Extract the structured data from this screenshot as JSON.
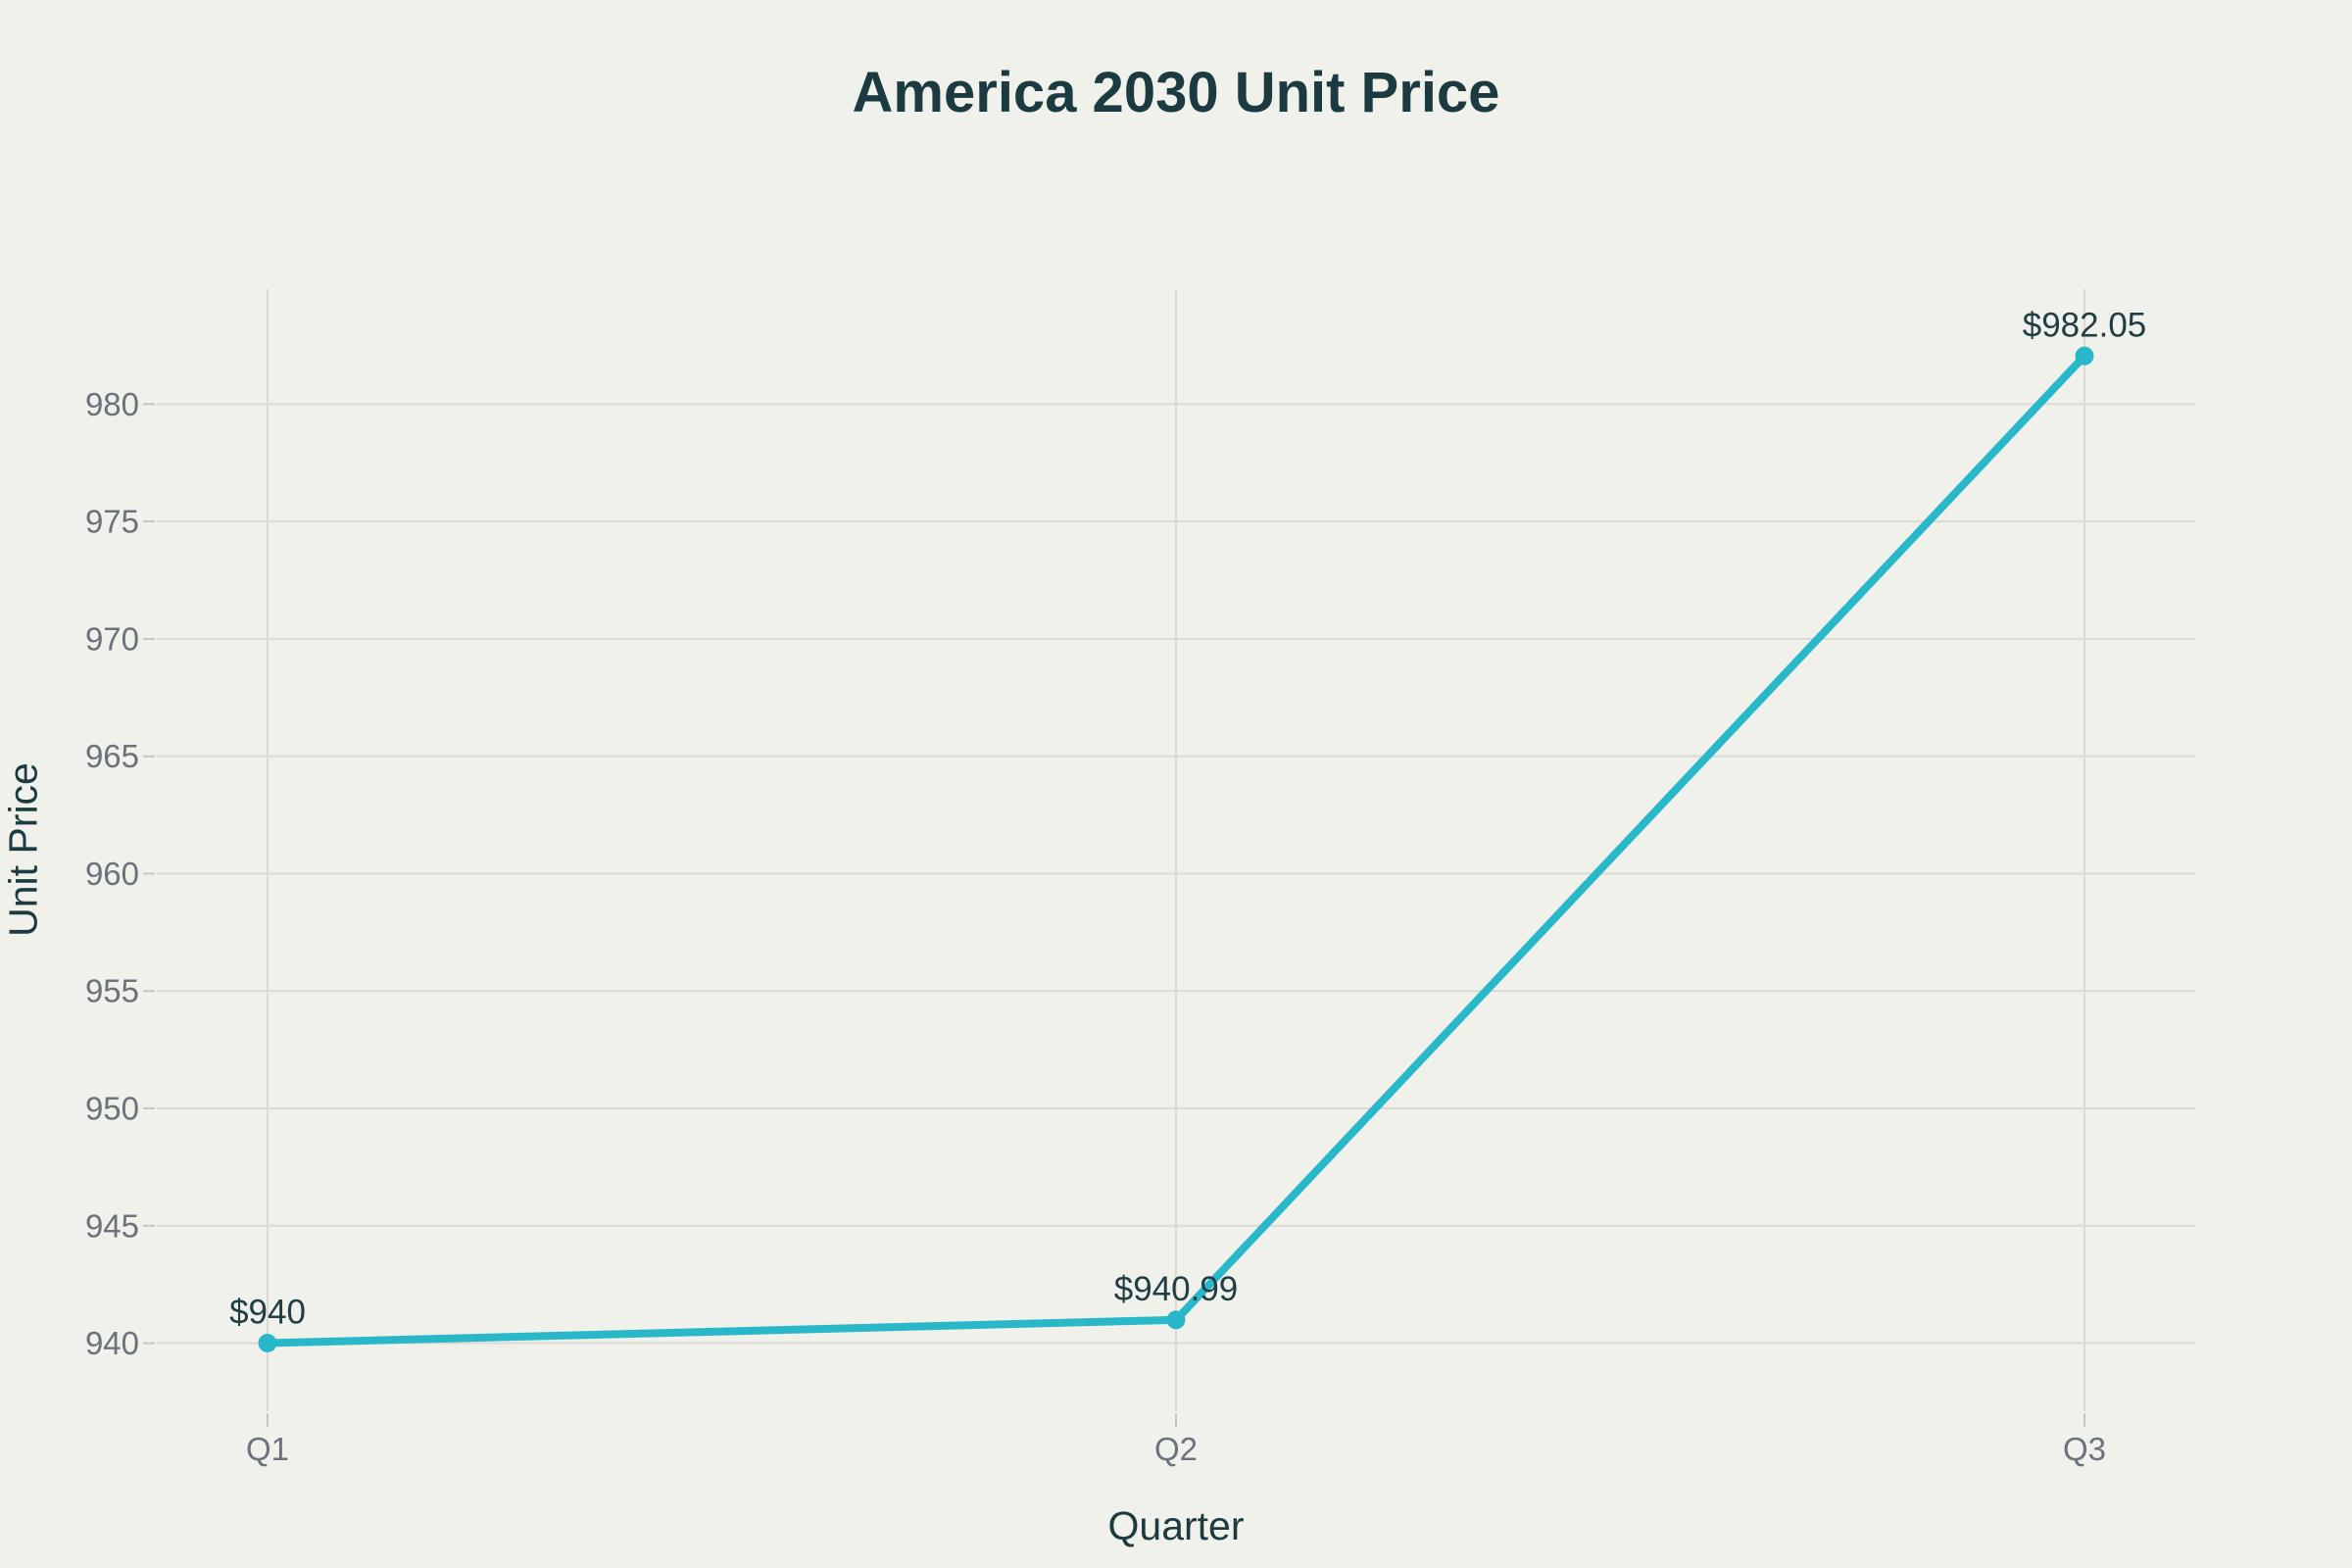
{
  "chart_data": {
    "type": "line",
    "title": "America 2030 Unit Price",
    "xlabel": "Quarter",
    "ylabel": "Unit Price",
    "categories": [
      "Q1",
      "Q2",
      "Q3"
    ],
    "series": [
      {
        "name": "Unit Price",
        "values": [
          940,
          940.99,
          982.05
        ],
        "point_labels": [
          "$940",
          "$940.99",
          "$982.05"
        ]
      }
    ],
    "yticks": [
      940,
      945,
      950,
      955,
      960,
      965,
      970,
      975,
      980
    ],
    "ylim": [
      937.1,
      984.9
    ],
    "grid": true,
    "legend_position": "none",
    "colors": {
      "line": "#29b7ca",
      "marker": "#29b7ca",
      "background": "#f1f1eb",
      "title_text": "#1c3b41",
      "tick_text": "#6a737b",
      "gridline": "#dadad4",
      "axis_tick": "#c7c7c1"
    }
  }
}
